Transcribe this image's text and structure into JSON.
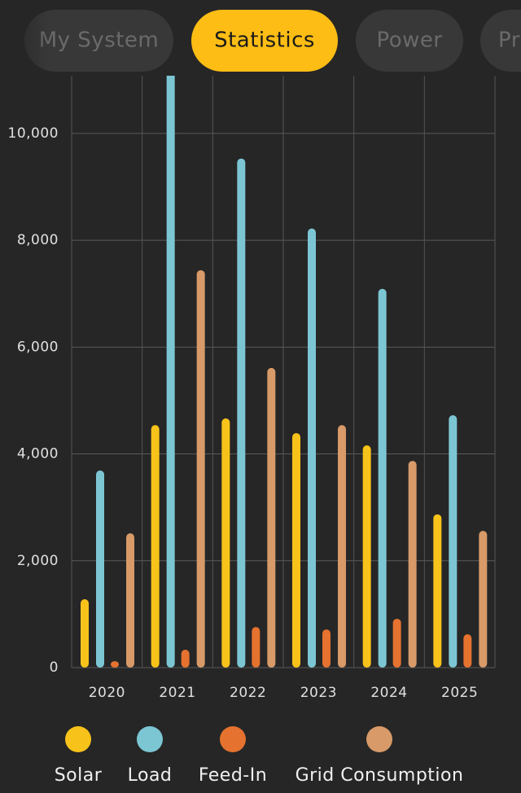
{
  "tabs": [
    "My System",
    "Statistics",
    "Power",
    "Pr"
  ],
  "selected_tab": 1,
  "chart_data": {
    "type": "bar",
    "categories": [
      "2020",
      "2021",
      "2022",
      "2023",
      "2024",
      "2025"
    ],
    "series": [
      {
        "name": "Solar",
        "color": "#F7C31A",
        "values": [
          1280,
          4540,
          4665,
          4390,
          4160,
          2870
        ]
      },
      {
        "name": "Load",
        "color": "#7CC6D4",
        "values": [
          3690,
          11500,
          9530,
          8220,
          7090,
          4725
        ]
      },
      {
        "name": "Feed-In",
        "color": "#E5722F",
        "values": [
          120,
          335,
          760,
          715,
          915,
          625
        ]
      },
      {
        "name": "Grid Consumption",
        "color": "#D79A68",
        "values": [
          2515,
          7440,
          5610,
          4540,
          3870,
          2560
        ]
      }
    ],
    "ylim": [
      0,
      11080
    ],
    "yticks": [
      0,
      {
        "value": 2000,
        "label": "2,000"
      },
      {
        "value": 4000,
        "label": "4,000"
      },
      {
        "value": 6000,
        "label": "6,000"
      },
      {
        "value": 8000,
        "label": "8,000"
      },
      {
        "value": 10000,
        "label": "10,000"
      }
    ],
    "grid": true
  }
}
